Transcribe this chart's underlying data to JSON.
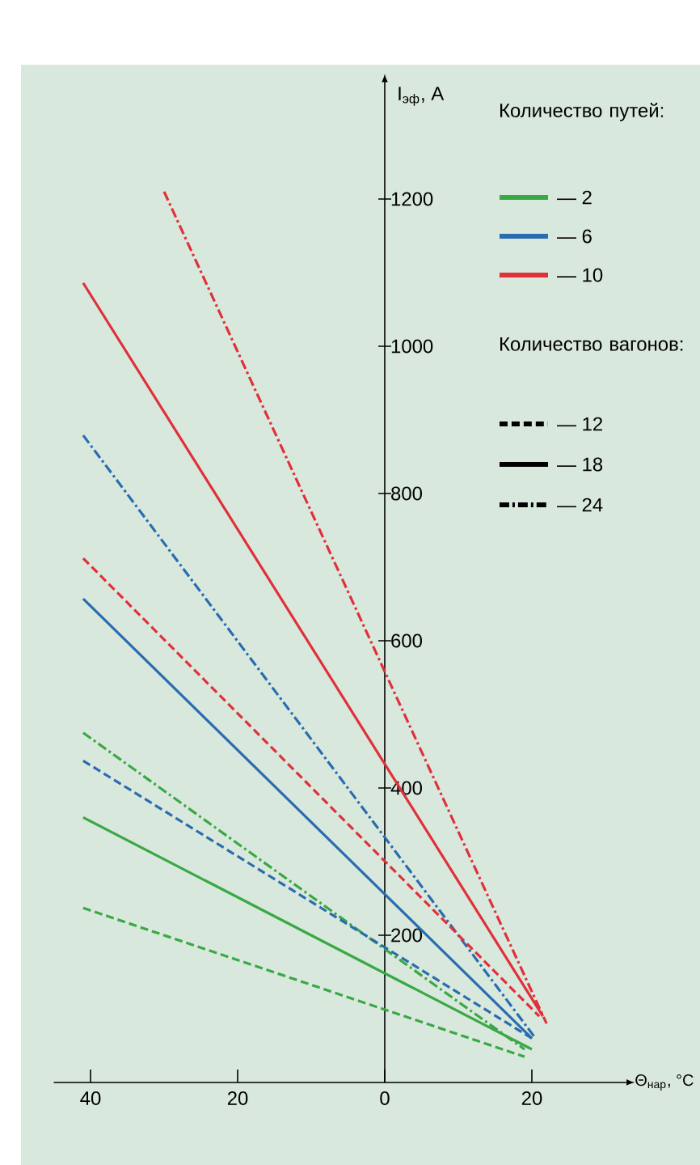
{
  "chart_data": {
    "type": "line",
    "xlabel": "Θ$_{нар}$, °C",
    "ylabel": "I$_{эф}$, A",
    "xlim": [
      -45,
      33
    ],
    "ylim": [
      0,
      1360
    ],
    "xticks": [
      {
        "value": -40,
        "label": "40"
      },
      {
        "value": -20,
        "label": "20"
      },
      0,
      20
    ],
    "yticks": [
      200,
      400,
      600,
      800,
      1000,
      1200
    ],
    "grid": false,
    "marker": "none",
    "annotations": [
      "Количество путей:",
      "— 2",
      "— 6",
      "— 10",
      "Количество вагонов:",
      "— 12",
      "— 18",
      "— 24"
    ],
    "series": [
      {
        "color": "#3aa845",
        "line_style": "dashed",
        "x": [
          -41,
          19
        ],
        "values": [
          237,
          35
        ]
      },
      {
        "color": "#3aa845",
        "line_style": "solid",
        "x": [
          -41,
          20
        ],
        "values": [
          360,
          45
        ]
      },
      {
        "color": "#3aa845",
        "line_style": "dashdot",
        "x": [
          -41,
          19
        ],
        "values": [
          475,
          45
        ]
      },
      {
        "color": "#2a6cb0",
        "line_style": "dashed",
        "x": [
          -41,
          20
        ],
        "values": [
          437,
          60
        ]
      },
      {
        "color": "#2a6cb0",
        "line_style": "solid",
        "x": [
          -41,
          20
        ],
        "values": [
          657,
          60
        ]
      },
      {
        "color": "#2a6cb0",
        "line_style": "dashdot",
        "x": [
          -41,
          20.5
        ],
        "values": [
          879,
          60
        ]
      },
      {
        "color": "#e0303a",
        "line_style": "dashed",
        "x": [
          -41,
          21
        ],
        "values": [
          712,
          90
        ]
      },
      {
        "color": "#e0303a",
        "line_style": "solid",
        "x": [
          -41,
          21.5
        ],
        "values": [
          1086,
          90
        ]
      },
      {
        "color": "#e0303a",
        "line_style": "dashdot",
        "x": [
          -30,
          22
        ],
        "values": [
          1210,
          80
        ]
      }
    ]
  }
}
